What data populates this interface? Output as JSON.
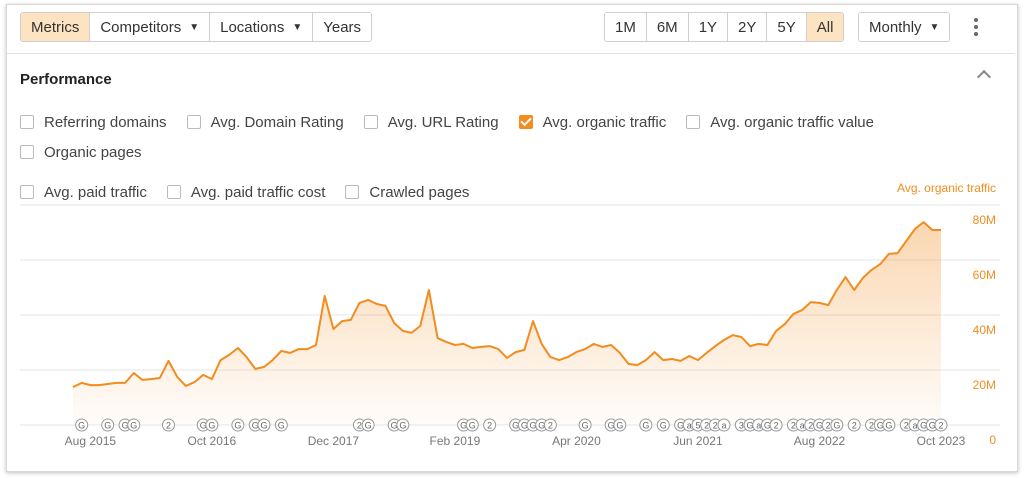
{
  "toolbar": {
    "tabs": [
      {
        "label": "Metrics",
        "active": true
      },
      {
        "label": "Competitors",
        "dropdown": true
      },
      {
        "label": "Locations",
        "dropdown": true
      },
      {
        "label": "Years"
      }
    ],
    "ranges": [
      {
        "label": "1M"
      },
      {
        "label": "6M"
      },
      {
        "label": "1Y"
      },
      {
        "label": "2Y"
      },
      {
        "label": "5Y"
      },
      {
        "label": "All",
        "active": true
      }
    ],
    "interval": "Monthly"
  },
  "section": {
    "title": "Performance",
    "metrics": [
      {
        "label": "Referring domains",
        "checked": false
      },
      {
        "label": "Avg. Domain Rating",
        "checked": false
      },
      {
        "label": "Avg. URL Rating",
        "checked": false
      },
      {
        "label": "Avg. organic traffic",
        "checked": true
      },
      {
        "label": "Avg. organic traffic value",
        "checked": false
      },
      {
        "label": "Organic pages",
        "checked": false
      },
      {
        "label": "Avg. paid traffic",
        "checked": false
      },
      {
        "label": "Avg. paid traffic cost",
        "checked": false
      },
      {
        "label": "Crawled pages",
        "checked": false
      }
    ]
  },
  "chart_data": {
    "type": "area",
    "x": [
      "Jun 2015",
      "Jul 2015",
      "Aug 2015",
      "Sep 2015",
      "Oct 2015",
      "Nov 2015",
      "Dec 2015",
      "Jan 2016",
      "Feb 2016",
      "Mar 2016",
      "Apr 2016",
      "May 2016",
      "Jun 2016",
      "Jul 2016",
      "Aug 2016",
      "Sep 2016",
      "Oct 2016",
      "Nov 2016",
      "Dec 2016",
      "Jan 2017",
      "Feb 2017",
      "Mar 2017",
      "Apr 2017",
      "May 2017",
      "Jun 2017",
      "Jul 2017",
      "Aug 2017",
      "Sep 2017",
      "Oct 2017",
      "Nov 2017",
      "Dec 2017",
      "Jan 2018",
      "Feb 2018",
      "Mar 2018",
      "Apr 2018",
      "May 2018",
      "Jun 2018",
      "Jul 2018",
      "Aug 2018",
      "Sep 2018",
      "Oct 2018",
      "Nov 2018",
      "Dec 2018",
      "Jan 2019",
      "Feb 2019",
      "Mar 2019",
      "Apr 2019",
      "May 2019",
      "Jun 2019",
      "Jul 2019",
      "Aug 2019",
      "Sep 2019",
      "Oct 2019",
      "Nov 2019",
      "Dec 2019",
      "Jan 2020",
      "Feb 2020",
      "Mar 2020",
      "Apr 2020",
      "May 2020",
      "Jun 2020",
      "Jul 2020",
      "Aug 2020",
      "Sep 2020",
      "Oct 2020",
      "Nov 2020",
      "Dec 2020",
      "Jan 2021",
      "Feb 2021",
      "Mar 2021",
      "Apr 2021",
      "May 2021",
      "Jun 2021",
      "Jul 2021",
      "Aug 2021",
      "Sep 2021",
      "Oct 2021",
      "Nov 2021",
      "Dec 2021",
      "Jan 2022",
      "Feb 2022",
      "Mar 2022",
      "Apr 2022",
      "May 2022",
      "Jun 2022",
      "Jul 2022",
      "Aug 2022",
      "Sep 2022",
      "Oct 2022",
      "Nov 2022",
      "Dec 2022",
      "Jan 2023",
      "Feb 2023",
      "Mar 2023",
      "Apr 2023",
      "May 2023",
      "Jun 2023",
      "Jul 2023",
      "Aug 2023",
      "Sep 2023",
      "Oct 2023"
    ],
    "xticks": [
      "Aug 2015",
      "Oct 2016",
      "Dec 2017",
      "Feb 2019",
      "Apr 2020",
      "Jun 2021",
      "Aug 2022",
      "Oct 2023"
    ],
    "series": [
      {
        "name": "Avg. organic traffic",
        "color": "#f28c1e",
        "values": [
          13.8,
          15.3,
          14.5,
          14.5,
          14.9,
          15.3,
          15.3,
          18.9,
          16.4,
          16.7,
          17.1,
          23.3,
          17.5,
          14.2,
          15.6,
          18.2,
          16.7,
          23.6,
          25.5,
          28.0,
          24.7,
          20.4,
          21.1,
          23.6,
          26.9,
          26.2,
          27.6,
          27.6,
          29.1,
          46.9,
          34.9,
          37.8,
          38.2,
          44.4,
          45.5,
          44.0,
          43.3,
          37.1,
          34.2,
          33.5,
          36.0,
          49.1,
          31.6,
          30.2,
          29.1,
          29.5,
          28.0,
          28.4,
          28.7,
          27.6,
          24.4,
          26.5,
          27.3,
          37.8,
          29.5,
          24.7,
          23.6,
          24.7,
          26.5,
          27.6,
          29.5,
          28.4,
          29.1,
          26.2,
          22.2,
          21.8,
          23.6,
          26.5,
          23.6,
          24.0,
          23.3,
          25.1,
          23.6,
          26.2,
          28.7,
          30.9,
          32.7,
          32.0,
          28.7,
          29.5,
          29.1,
          34.2,
          36.7,
          40.4,
          41.8,
          44.7,
          44.4,
          43.6,
          49.1,
          53.8,
          49.1,
          53.5,
          56.4,
          58.5,
          62.2,
          62.5,
          66.9,
          71.3,
          73.8,
          70.9,
          70.9
        ]
      }
    ],
    "ylim": [
      0,
      80
    ],
    "yticks": [
      0,
      {
        "value": 20,
        "label": "20M"
      },
      {
        "value": 40,
        "label": "40M"
      },
      {
        "value": 60,
        "label": "60M"
      },
      {
        "value": 80,
        "label": "80M"
      }
    ],
    "grid": true,
    "annotations": [
      {
        "x": "Jul 2015",
        "label": "G"
      },
      {
        "x": "Oct 2015",
        "label": "G"
      },
      {
        "x": "Dec 2015",
        "label": "G"
      },
      {
        "x": "Jan 2016",
        "label": "G"
      },
      {
        "x": "May 2016",
        "label": "2"
      },
      {
        "x": "Sep 2016",
        "label": "G"
      },
      {
        "x": "Oct 2016",
        "label": "G"
      },
      {
        "x": "Jan 2017",
        "label": "G"
      },
      {
        "x": "Mar 2017",
        "label": "G"
      },
      {
        "x": "Apr 2017",
        "label": "G"
      },
      {
        "x": "Jun 2017",
        "label": "G"
      },
      {
        "x": "Mar 2018",
        "label": "2"
      },
      {
        "x": "Apr 2018",
        "label": "G"
      },
      {
        "x": "Jul 2018",
        "label": "G"
      },
      {
        "x": "Aug 2018",
        "label": "G"
      },
      {
        "x": "Mar 2019",
        "label": "G"
      },
      {
        "x": "Apr 2019",
        "label": "G"
      },
      {
        "x": "Jun 2019",
        "label": "2"
      },
      {
        "x": "Sep 2019",
        "label": "G"
      },
      {
        "x": "Oct 2019",
        "label": "G"
      },
      {
        "x": "Nov 2019",
        "label": "G"
      },
      {
        "x": "Dec 2019",
        "label": "G"
      },
      {
        "x": "Jan 2020",
        "label": "2"
      },
      {
        "x": "May 2020",
        "label": "G"
      },
      {
        "x": "Aug 2020",
        "label": "G"
      },
      {
        "x": "Sep 2020",
        "label": "G"
      },
      {
        "x": "Dec 2020",
        "label": "G"
      },
      {
        "x": "Feb 2021",
        "label": "G"
      },
      {
        "x": "Apr 2021",
        "label": "G"
      },
      {
        "x": "May 2021",
        "label": "a"
      },
      {
        "x": "Jun 2021",
        "label": "5"
      },
      {
        "x": "Jul 2021",
        "label": "2"
      },
      {
        "x": "Aug 2021",
        "label": "2"
      },
      {
        "x": "Sep 2021",
        "label": "a"
      },
      {
        "x": "Nov 2021",
        "label": "3"
      },
      {
        "x": "Dec 2021",
        "label": "G"
      },
      {
        "x": "Jan 2022",
        "label": "a"
      },
      {
        "x": "Feb 2022",
        "label": "G"
      },
      {
        "x": "Mar 2022",
        "label": "2"
      },
      {
        "x": "May 2022",
        "label": "2"
      },
      {
        "x": "Jun 2022",
        "label": "a"
      },
      {
        "x": "Jul 2022",
        "label": "2"
      },
      {
        "x": "Aug 2022",
        "label": "G"
      },
      {
        "x": "Sep 2022",
        "label": "2"
      },
      {
        "x": "Oct 2022",
        "label": "G"
      },
      {
        "x": "Dec 2022",
        "label": "2"
      },
      {
        "x": "Feb 2023",
        "label": "2"
      },
      {
        "x": "Mar 2023",
        "label": "G"
      },
      {
        "x": "Apr 2023",
        "label": "G"
      },
      {
        "x": "Jun 2023",
        "label": "2"
      },
      {
        "x": "Jul 2023",
        "label": "a"
      },
      {
        "x": "Aug 2023",
        "label": "G"
      },
      {
        "x": "Sep 2023",
        "label": "G"
      },
      {
        "x": "Oct 2023",
        "label": "2"
      }
    ]
  }
}
